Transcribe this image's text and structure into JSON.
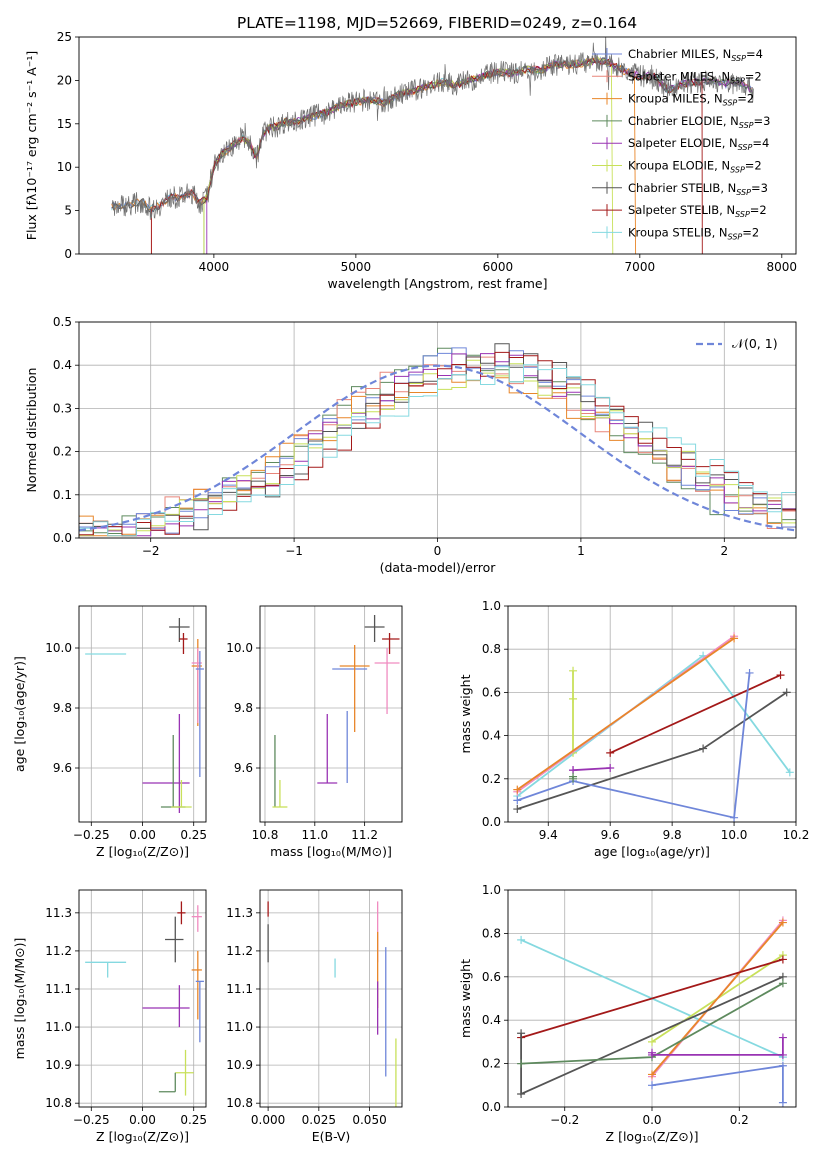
{
  "figure_title": "PLATE=1198, MJD=52669, FIBERID=0249, z=0.164",
  "colors": {
    "chabrier_miles": "#6f86d9",
    "salpeter_miles": "#e8857a",
    "kroupa_miles": "#e8862a",
    "chabrier_elodie": "#5e8a5e",
    "salpeter_elodie": "#9933b3",
    "kroupa_elodie": "#c8e05a",
    "chabrier_stelib": "#555555",
    "salpeter_stelib": "#a31919",
    "kroupa_stelib": "#85d9e0",
    "pink": "#f08cc0",
    "spectrum": "#707070",
    "normal_curve": "#6f86d9"
  },
  "chart_data": [
    {
      "id": "spectrum",
      "type": "line",
      "xlabel": "wavelength [Angstrom, rest frame]",
      "ylabel": "Flux [fλ10⁻¹⁷ erg cm⁻² s⁻¹ A⁻¹]",
      "xlim": [
        3050,
        8100
      ],
      "ylim": [
        0,
        25
      ],
      "xticks": [
        "4000",
        "5000",
        "6000",
        "7000",
        "8000"
      ],
      "yticks": [
        "0",
        "5",
        "10",
        "15",
        "20",
        "25"
      ],
      "grid": false,
      "legend_position": "top-right",
      "legend": [
        {
          "label": "Chabrier MILES, N",
          "sub": "SSP",
          "suffix": "=4",
          "color": "#6f86d9"
        },
        {
          "label": "Salpeter MILES, N",
          "sub": "SSP",
          "suffix": "=2",
          "color": "#e8857a"
        },
        {
          "label": "Kroupa MILES, N",
          "sub": "SSP",
          "suffix": "=2",
          "color": "#e8862a"
        },
        {
          "label": "Chabrier ELODIE, N",
          "sub": "SSP",
          "suffix": "=3",
          "color": "#5e8a5e"
        },
        {
          "label": "Salpeter ELODIE, N",
          "sub": "SSP",
          "suffix": "=4",
          "color": "#9933b3"
        },
        {
          "label": "Kroupa ELODIE, N",
          "sub": "SSP",
          "suffix": "=2",
          "color": "#c8e05a"
        },
        {
          "label": "Chabrier STELIB, N",
          "sub": "SSP",
          "suffix": "=3",
          "color": "#555555"
        },
        {
          "label": "Salpeter STELIB, N",
          "sub": "SSP",
          "suffix": "=2",
          "color": "#a31919"
        },
        {
          "label": "Kroupa STELIB, N",
          "sub": "SSP",
          "suffix": "=2",
          "color": "#85d9e0"
        }
      ],
      "continuum": {
        "x": [
          3280,
          3400,
          3500,
          3550,
          3600,
          3650,
          3700,
          3750,
          3800,
          3850,
          3900,
          3950,
          4000,
          4050,
          4100,
          4150,
          4200,
          4250,
          4300,
          4350,
          4400,
          4450,
          4500,
          4600,
          4700,
          4800,
          4900,
          5000,
          5100,
          5200,
          5300,
          5400,
          5500,
          5600,
          5700,
          5800,
          5900,
          6000,
          6100,
          6200,
          6300,
          6400,
          6500,
          6600,
          6700,
          6800,
          6900,
          7000,
          7100,
          7200,
          7300,
          7400,
          7500,
          7600,
          7700,
          7800
        ],
        "y": [
          5.5,
          5.7,
          6.0,
          5.2,
          5.4,
          6.0,
          6.6,
          6.4,
          6.8,
          7.0,
          5.8,
          6.5,
          10.0,
          11.5,
          12.0,
          12.8,
          13.4,
          12.9,
          11.0,
          14.0,
          14.6,
          14.7,
          15.2,
          15.3,
          15.9,
          16.3,
          17.2,
          17.5,
          17.8,
          17.4,
          18.3,
          18.8,
          19.3,
          19.8,
          19.5,
          20.0,
          20.5,
          21.0,
          20.8,
          21.3,
          21.2,
          21.8,
          21.8,
          22.0,
          22.3,
          22.0,
          21.0,
          20.5,
          20.5,
          18.8,
          19.6,
          19.8,
          20.0,
          19.6,
          19.8,
          18.8
        ]
      }
    },
    {
      "id": "residuals",
      "type": "line",
      "xlabel": "(data-model)/error",
      "ylabel": "Normed distribution",
      "xlim": [
        -2.5,
        2.5
      ],
      "ylim": [
        0,
        0.5
      ],
      "xticks": [
        "−2",
        "−1",
        "0",
        "1",
        "2"
      ],
      "yticks": [
        "0.0",
        "0.1",
        "0.2",
        "0.3",
        "0.4",
        "0.5"
      ],
      "grid": true,
      "legend_position": "top-right",
      "legend": [
        {
          "label": "𝒩(0, 1)",
          "color": "#6f86d9"
        }
      ]
    },
    {
      "id": "z_vs_age",
      "type": "scatter",
      "xlabel": "Z [log₁₀(Z/Z⊙)]",
      "ylabel": "age  [log₁₀(age/yr)]",
      "xlim": [
        -0.31,
        0.31
      ],
      "ylim": [
        9.42,
        10.14
      ],
      "xticks": [
        "−0.25",
        "0.00",
        "0.25"
      ],
      "yticks": [
        "9.6",
        "9.8",
        "10.0"
      ],
      "grid": true,
      "points": [
        {
          "x": -0.17,
          "y": 9.98,
          "xerr": [
            0.11,
            0.09
          ],
          "yerr": [
            0.0,
            0.0
          ],
          "color": "#85d9e0"
        },
        {
          "x": -0.17,
          "y": 9.98,
          "xerr": [
            0.0,
            0.0
          ],
          "yerr": [
            0.0,
            0.0
          ],
          "color": "#85d9e0"
        },
        {
          "x": 0.18,
          "y": 10.07,
          "xerr": [
            0.05,
            0.05
          ],
          "yerr": [
            0.05,
            0.03
          ],
          "color": "#555555"
        },
        {
          "x": 0.2,
          "y": 10.03,
          "xerr": [
            0.02,
            0.02
          ],
          "yerr": [
            0.05,
            0.02
          ],
          "color": "#a31919"
        },
        {
          "x": 0.27,
          "y": 9.94,
          "xerr": [
            0.03,
            0.02
          ],
          "yerr": [
            0.2,
            0.09
          ],
          "color": "#e8862a"
        },
        {
          "x": 0.27,
          "y": 9.95,
          "xerr": [
            0.03,
            0.02
          ],
          "yerr": [
            0.2,
            0.05
          ],
          "color": "#f08cc0"
        },
        {
          "x": 0.28,
          "y": 9.93,
          "xerr": [
            0.02,
            0.02
          ],
          "yerr": [
            0.36,
            0.06
          ],
          "color": "#6f86d9"
        },
        {
          "x": 0.18,
          "y": 9.55,
          "xerr": [
            0.18,
            0.05
          ],
          "yerr": [
            0.1,
            0.23
          ],
          "color": "#9933b3"
        },
        {
          "x": 0.15,
          "y": 9.47,
          "xerr": [
            0.06,
            0.06
          ],
          "yerr": [
            0.0,
            0.24
          ],
          "color": "#5e8a5e"
        },
        {
          "x": 0.19,
          "y": 9.47,
          "xerr": [
            0.05,
            0.05
          ],
          "yerr": [
            0.0,
            0.09
          ],
          "color": "#c8e05a"
        }
      ]
    },
    {
      "id": "mass_vs_age",
      "type": "scatter",
      "xlabel": "mass [log₁₀(M/M⊙)]",
      "ylabel": "",
      "xlim": [
        10.78,
        11.35
      ],
      "ylim": [
        9.42,
        10.14
      ],
      "xticks": [
        "10.8",
        "11.0",
        "11.2"
      ],
      "yticks": [
        "9.6",
        "9.8",
        "10.0"
      ],
      "grid": true,
      "points": [
        {
          "x": 11.24,
          "y": 10.07,
          "xerr": [
            0.04,
            0.04
          ],
          "yerr": [
            0.05,
            0.04
          ],
          "color": "#555555"
        },
        {
          "x": 11.3,
          "y": 10.03,
          "xerr": [
            0.03,
            0.04
          ],
          "yerr": [
            0.05,
            0.02
          ],
          "color": "#a31919"
        },
        {
          "x": 11.14,
          "y": 9.93,
          "xerr": [
            0.07,
            0.07
          ],
          "yerr": [
            0.0,
            0.0
          ],
          "color": "#6f86d9"
        },
        {
          "x": 11.16,
          "y": 9.94,
          "xerr": [
            0.06,
            0.06
          ],
          "yerr": [
            0.22,
            0.07
          ],
          "color": "#e8862a"
        },
        {
          "x": 11.29,
          "y": 9.95,
          "xerr": [
            0.05,
            0.05
          ],
          "yerr": [
            0.17,
            0.05
          ],
          "color": "#f08cc0"
        },
        {
          "x": 11.13,
          "y": 9.67,
          "xerr": [
            0.0,
            0.0
          ],
          "yerr": [
            0.12,
            0.12
          ],
          "color": "#6f86d9"
        },
        {
          "x": 11.05,
          "y": 9.55,
          "xerr": [
            0.04,
            0.04
          ],
          "yerr": [
            0.0,
            0.23
          ],
          "color": "#9933b3"
        },
        {
          "x": 10.84,
          "y": 9.47,
          "xerr": [
            0.0,
            0.0
          ],
          "yerr": [
            0.0,
            0.24
          ],
          "color": "#5e8a5e"
        },
        {
          "x": 10.86,
          "y": 9.47,
          "xerr": [
            0.03,
            0.03
          ],
          "yerr": [
            0.0,
            0.09
          ],
          "color": "#c8e05a"
        }
      ]
    },
    {
      "id": "age_vs_weight",
      "type": "line",
      "xlabel": "age  [log₁₀(age/yr)]",
      "ylabel": "mass weight",
      "xlim": [
        9.27,
        10.2
      ],
      "ylim": [
        0,
        1
      ],
      "xticks": [
        "9.4",
        "9.6",
        "9.8",
        "10.0",
        "10.2"
      ],
      "yticks": [
        "0.0",
        "0.2",
        "0.4",
        "0.6",
        "0.8",
        "1.0"
      ],
      "grid": true,
      "series": [
        {
          "color": "#85d9e0",
          "x": [
            9.3,
            9.9,
            10.18
          ],
          "y": [
            0.12,
            0.77,
            0.23
          ]
        },
        {
          "color": "#c8e05a",
          "x": [
            9.48,
            9.48,
            9.48
          ],
          "y": [
            0.32,
            0.57,
            0.7
          ]
        },
        {
          "color": "#f08cc0",
          "x": [
            9.3,
            10.0
          ],
          "y": [
            0.14,
            0.86
          ]
        },
        {
          "color": "#e8862a",
          "x": [
            9.3,
            10.0
          ],
          "y": [
            0.15,
            0.85
          ]
        },
        {
          "color": "#a31919",
          "x": [
            9.6,
            10.15
          ],
          "y": [
            0.32,
            0.68
          ]
        },
        {
          "color": "#555555",
          "x": [
            9.3,
            9.9,
            10.17
          ],
          "y": [
            0.06,
            0.34,
            0.6
          ]
        },
        {
          "color": "#6f86d9",
          "x": [
            9.3,
            9.48,
            10.0,
            10.05
          ],
          "y": [
            0.1,
            0.19,
            0.02,
            0.69
          ]
        },
        {
          "color": "#9933b3",
          "x": [
            9.48,
            9.48,
            9.6
          ],
          "y": [
            0.24,
            0.24,
            0.25
          ]
        },
        {
          "color": "#5e8a5e",
          "x": [
            9.48,
            9.48
          ],
          "y": [
            0.2,
            0.21
          ]
        }
      ]
    },
    {
      "id": "z_vs_mass",
      "type": "scatter",
      "xlabel": "Z [log₁₀(Z/Z⊙)]",
      "ylabel": "mass [log₁₀(M/M⊙)]",
      "xlim": [
        -0.31,
        0.31
      ],
      "ylim": [
        10.79,
        11.36
      ],
      "xticks": [
        "−0.25",
        "0.00",
        "0.25"
      ],
      "yticks": [
        "10.8",
        "10.9",
        "11.0",
        "11.1",
        "11.2",
        "11.3"
      ],
      "grid": true,
      "points": [
        {
          "x": -0.17,
          "y": 11.17,
          "xerr": [
            0.11,
            0.09
          ],
          "yerr": [
            0.04,
            0.0
          ],
          "color": "#85d9e0"
        },
        {
          "x": 0.19,
          "y": 11.3,
          "xerr": [
            0.02,
            0.02
          ],
          "yerr": [
            0.03,
            0.03
          ],
          "color": "#a31919"
        },
        {
          "x": 0.16,
          "y": 11.23,
          "xerr": [
            0.05,
            0.04
          ],
          "yerr": [
            0.06,
            0.06
          ],
          "color": "#555555"
        },
        {
          "x": 0.27,
          "y": 11.29,
          "xerr": [
            0.03,
            0.02
          ],
          "yerr": [
            0.04,
            0.03
          ],
          "color": "#f08cc0"
        },
        {
          "x": 0.27,
          "y": 11.15,
          "xerr": [
            0.03,
            0.02
          ],
          "yerr": [
            0.13,
            0.05
          ],
          "color": "#e8862a"
        },
        {
          "x": 0.28,
          "y": 11.12,
          "xerr": [
            0.02,
            0.02
          ],
          "yerr": [
            0.16,
            0.0
          ],
          "color": "#6f86d9"
        },
        {
          "x": 0.18,
          "y": 11.05,
          "xerr": [
            0.18,
            0.05
          ],
          "yerr": [
            0.05,
            0.06
          ],
          "color": "#9933b3"
        },
        {
          "x": 0.21,
          "y": 10.88,
          "xerr": [
            0.05,
            0.04
          ],
          "yerr": [
            0.06,
            0.06
          ],
          "color": "#c8e05a"
        },
        {
          "x": 0.16,
          "y": 10.83,
          "xerr": [
            0.08,
            0.0
          ],
          "yerr": [
            0.0,
            0.05
          ],
          "color": "#5e8a5e"
        }
      ]
    },
    {
      "id": "ebv_vs_mass",
      "type": "scatter",
      "xlabel": "E(B-V)",
      "ylabel": "",
      "xlim": [
        -0.004,
        0.066
      ],
      "ylim": [
        10.79,
        11.36
      ],
      "xticks": [
        "0.000",
        "0.025",
        "0.050"
      ],
      "yticks": [
        "10.8",
        "10.9",
        "11.0",
        "11.1",
        "11.2",
        "11.3"
      ],
      "grid": true,
      "points": [
        {
          "x": 0.0,
          "y": 11.22,
          "xerr": [
            0.0,
            0.0
          ],
          "yerr": [
            0.05,
            0.05
          ],
          "color": "#555555"
        },
        {
          "x": 0.0,
          "y": 11.31,
          "xerr": [
            0.0,
            0.0
          ],
          "yerr": [
            0.02,
            0.02
          ],
          "color": "#a31919"
        },
        {
          "x": 0.033,
          "y": 11.155,
          "xerr": [
            0.0,
            0.0
          ],
          "yerr": [
            0.025,
            0.025
          ],
          "color": "#85d9e0"
        },
        {
          "x": 0.054,
          "y": 11.25,
          "xerr": [
            0.0,
            0.0
          ],
          "yerr": [
            0.08,
            0.08
          ],
          "color": "#f08cc0"
        },
        {
          "x": 0.054,
          "y": 11.15,
          "xerr": [
            0.0,
            0.0
          ],
          "yerr": [
            0.1,
            0.1
          ],
          "color": "#e8862a"
        },
        {
          "x": 0.054,
          "y": 11.05,
          "xerr": [
            0.0,
            0.0
          ],
          "yerr": [
            0.07,
            0.07
          ],
          "color": "#9933b3"
        },
        {
          "x": 0.058,
          "y": 11.04,
          "xerr": [
            0.0,
            0.0
          ],
          "yerr": [
            0.17,
            0.17
          ],
          "color": "#6f86d9"
        },
        {
          "x": 0.063,
          "y": 10.88,
          "xerr": [
            0.0,
            0.0
          ],
          "yerr": [
            0.09,
            0.09
          ],
          "color": "#c8e05a"
        }
      ]
    },
    {
      "id": "z_vs_weight",
      "type": "line",
      "xlabel": "Z [log₁₀(Z/Z⊙)]",
      "ylabel": "mass weight",
      "xlim": [
        -0.33,
        0.33
      ],
      "ylim": [
        0,
        1
      ],
      "xticks": [
        "−0.2",
        "0.0",
        "0.2"
      ],
      "yticks": [
        "0.0",
        "0.2",
        "0.4",
        "0.6",
        "0.8",
        "1.0"
      ],
      "grid": true,
      "series": [
        {
          "color": "#85d9e0",
          "x": [
            -0.3,
            0.3
          ],
          "y": [
            0.77,
            0.23
          ]
        },
        {
          "color": "#c8e05a",
          "x": [
            0.0,
            0.3
          ],
          "y": [
            0.3,
            0.7
          ]
        },
        {
          "color": "#f08cc0",
          "x": [
            0.0,
            0.3
          ],
          "y": [
            0.14,
            0.86
          ]
        },
        {
          "color": "#e8862a",
          "x": [
            0.0,
            0.3
          ],
          "y": [
            0.15,
            0.85
          ]
        },
        {
          "color": "#a31919",
          "x": [
            -0.3,
            0.3
          ],
          "y": [
            0.32,
            0.68
          ]
        },
        {
          "color": "#555555",
          "x": [
            -0.3,
            -0.3,
            0.3
          ],
          "y": [
            0.34,
            0.06,
            0.6
          ]
        },
        {
          "color": "#5e8a5e",
          "x": [
            -0.3,
            0.0,
            0.3
          ],
          "y": [
            0.2,
            0.23,
            0.57
          ]
        },
        {
          "color": "#9933b3",
          "x": [
            0.0,
            0.0,
            0.3,
            0.3
          ],
          "y": [
            0.25,
            0.24,
            0.24,
            0.32
          ]
        },
        {
          "color": "#6f86d9",
          "x": [
            0.0,
            0.3,
            0.3
          ],
          "y": [
            0.1,
            0.19,
            0.02
          ]
        }
      ]
    }
  ]
}
